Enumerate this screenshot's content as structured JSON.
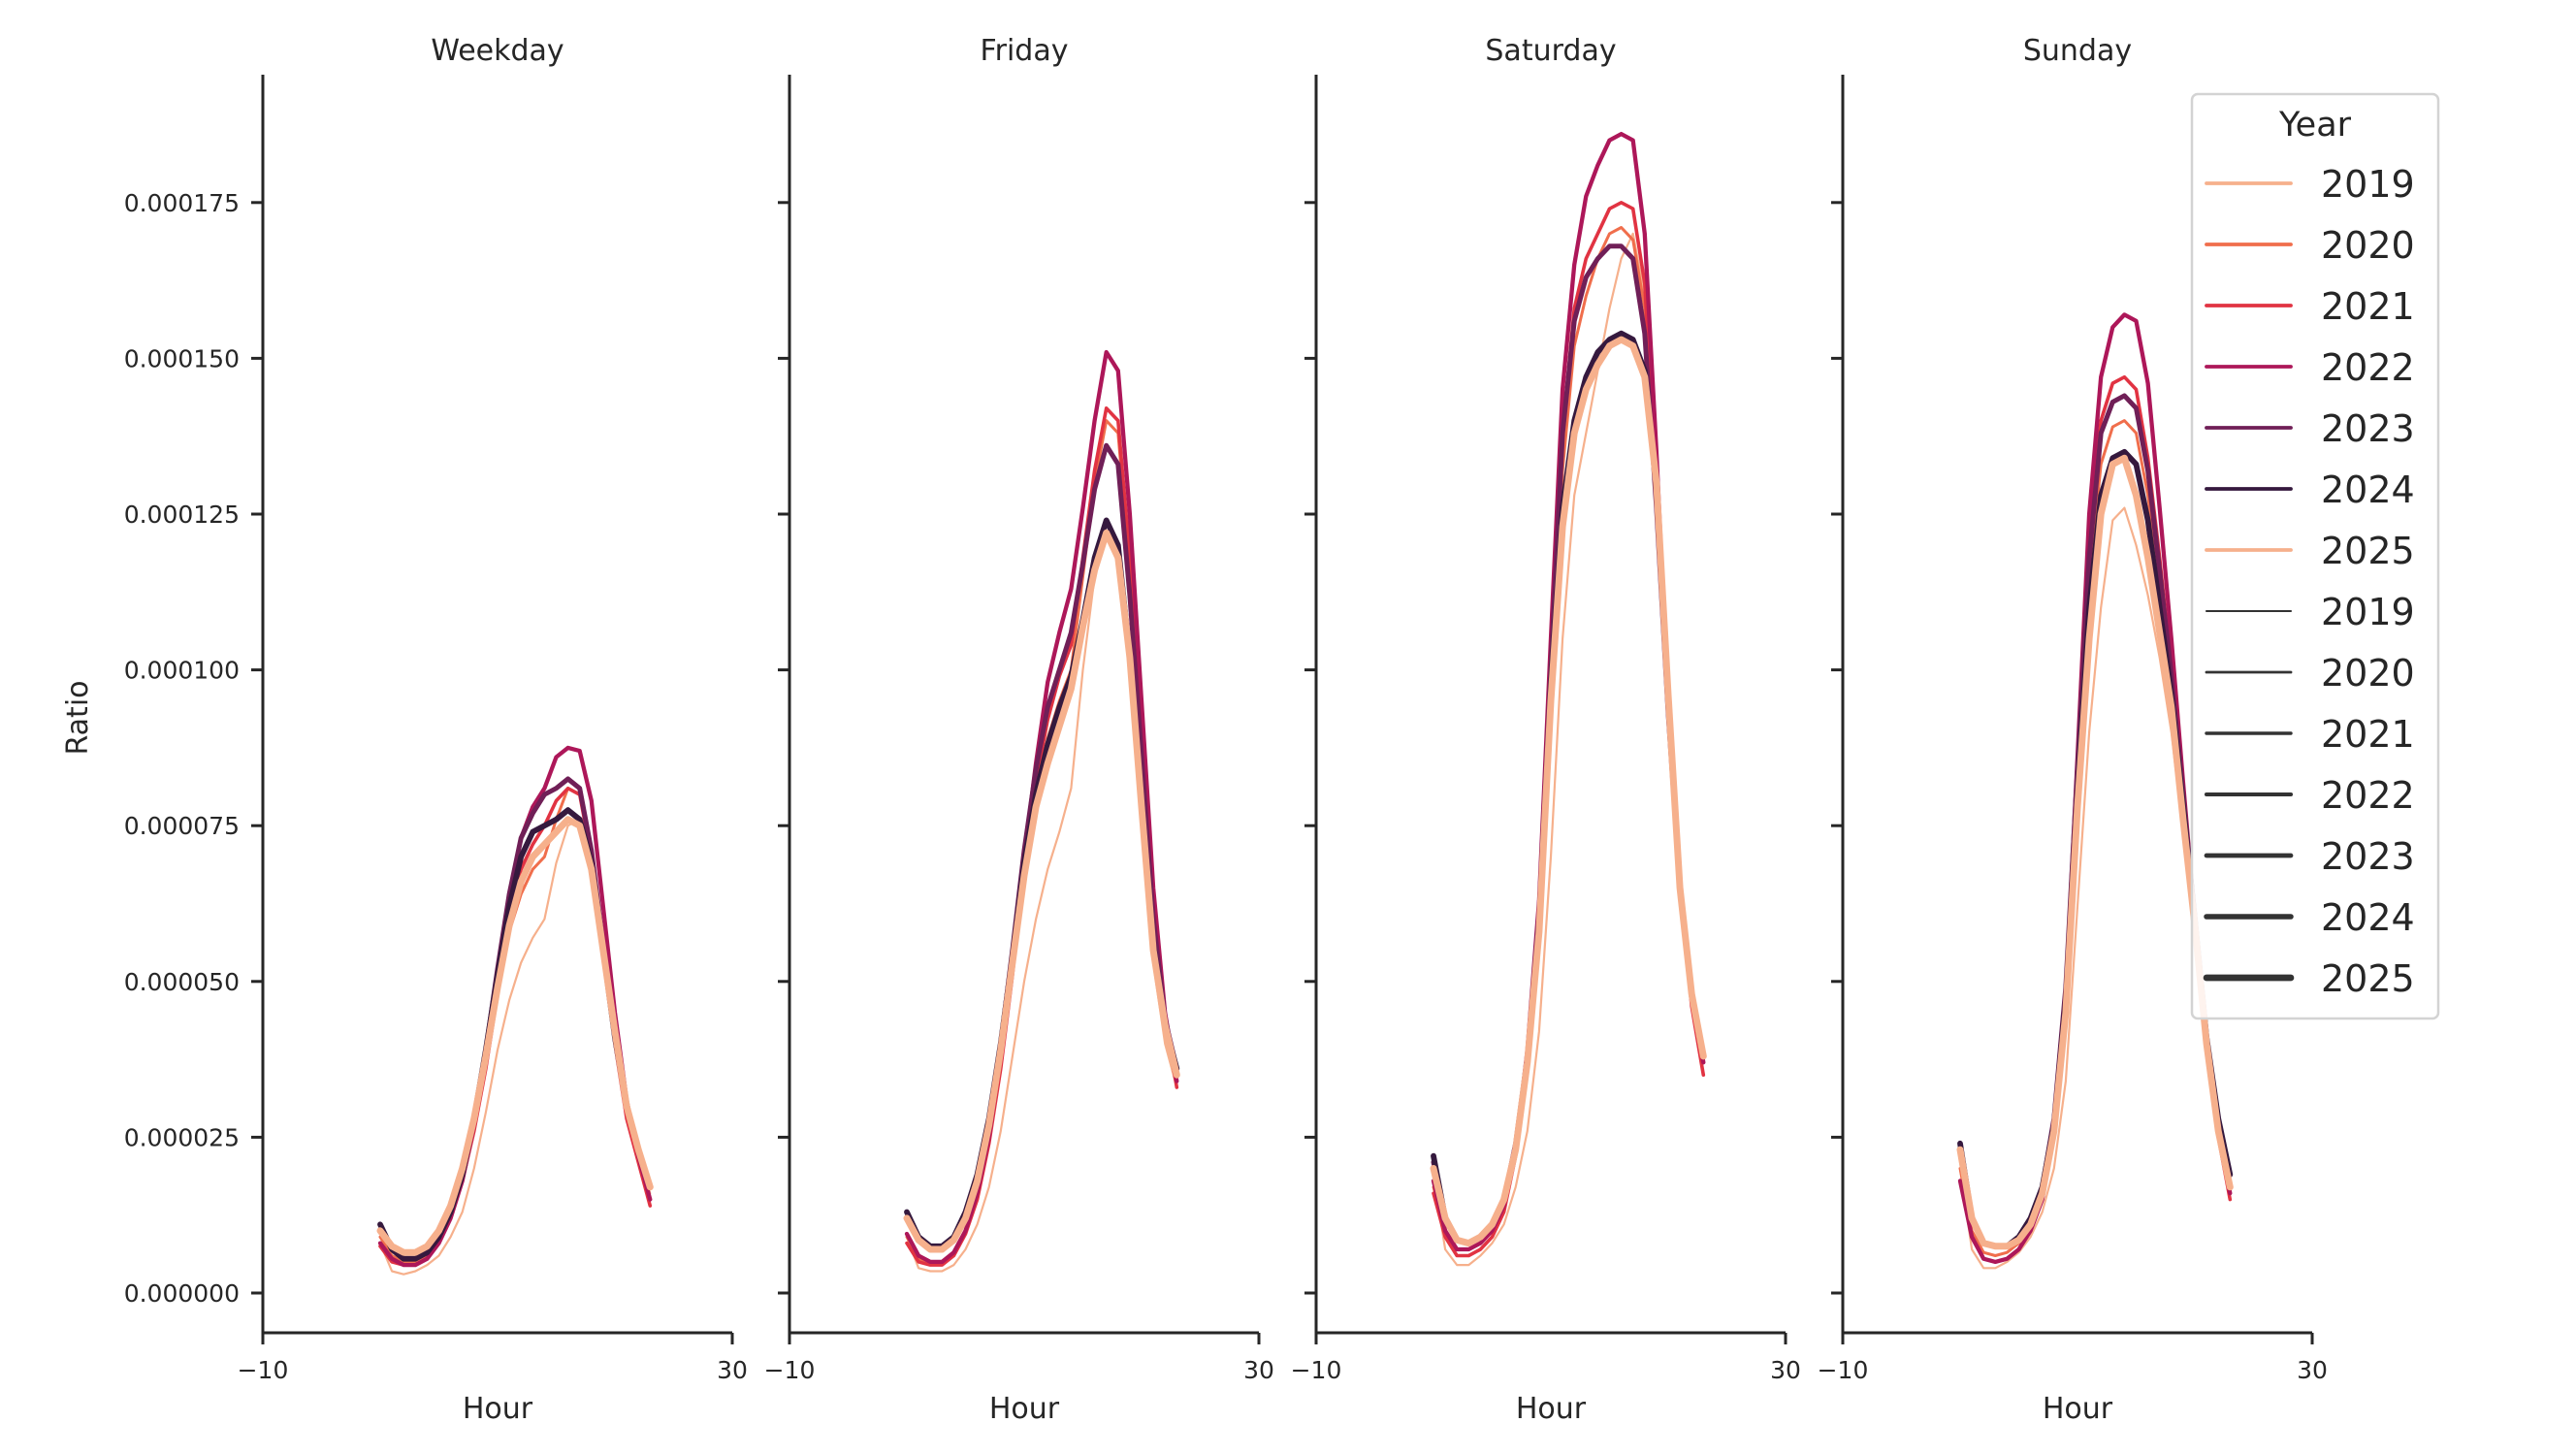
{
  "chart_data": {
    "type": "line",
    "ylabel": "Ratio",
    "xlabel": "Hour",
    "xlim": [
      -10,
      30
    ],
    "xticks": [
      "−10",
      "30"
    ],
    "ylim": [
      -6.5e-06,
      0.000197
    ],
    "yticks": [
      "0.000000",
      "0.000025",
      "0.000050",
      "0.000075",
      "0.000100",
      "0.000125",
      "0.000150",
      "0.000175"
    ],
    "ytick_values": [
      0,
      2.5e-05,
      5e-05,
      7.5e-05,
      0.0001,
      0.000125,
      0.00015,
      0.000175
    ],
    "grid": false,
    "x": [
      0,
      1,
      2,
      3,
      4,
      5,
      6,
      7,
      8,
      9,
      10,
      11,
      12,
      13,
      14,
      15,
      16,
      17,
      18,
      19,
      20,
      21,
      22,
      23
    ],
    "legend": {
      "title": "Year",
      "placement": "right",
      "hue_entries": [
        "2019",
        "2020",
        "2021",
        "2022",
        "2023",
        "2024",
        "2025"
      ],
      "size_entries": [
        "2019",
        "2020",
        "2021",
        "2022",
        "2023",
        "2024",
        "2025"
      ]
    },
    "colors": {
      "2019": "#f6b08c",
      "2020": "#f06e4c",
      "2021": "#e13342",
      "2022": "#ad1759",
      "2023": "#701f57",
      "2024": "#35193e",
      "2025": "#f6b08c"
    },
    "panels": [
      {
        "title": "Weekday",
        "series": [
          {
            "name": "2019",
            "values": [
              8e-06,
              3.5e-06,
              3e-06,
              3.5e-06,
              4.5e-06,
              6e-06,
              9e-06,
              1.3e-05,
              2e-05,
              2.9e-05,
              3.9e-05,
              4.7e-05,
              5.3e-05,
              5.7e-05,
              6e-05,
              6.9e-05,
              7.5e-05,
              7.6e-05,
              6.7e-05,
              5.3e-05,
              4e-05,
              2.9e-05,
              2.2e-05,
              1.6e-05
            ]
          },
          {
            "name": "2020",
            "values": [
              9e-06,
              6e-06,
              5e-06,
              5e-06,
              6e-06,
              8.5e-06,
              1.2e-05,
              1.8e-05,
              2.6e-05,
              3.6e-05,
              4.8e-05,
              5.8e-05,
              6.4e-05,
              6.8e-05,
              7e-05,
              7.6e-05,
              8.1e-05,
              8e-05,
              7e-05,
              5.5e-05,
              4.1e-05,
              3e-05,
              2.3e-05,
              1.7e-05
            ]
          },
          {
            "name": "2021",
            "values": [
              7.5e-06,
              5e-06,
              4.5e-06,
              4.5e-06,
              5.5e-06,
              8e-06,
              1.2e-05,
              1.8e-05,
              2.6e-05,
              3.6e-05,
              4.8e-05,
              6e-05,
              6.8e-05,
              7.2e-05,
              7.5e-05,
              7.9e-05,
              8.1e-05,
              8e-05,
              7e-05,
              5.5e-05,
              4e-05,
              2.8e-05,
              2.1e-05,
              1.4e-05
            ]
          },
          {
            "name": "2022",
            "values": [
              8e-06,
              5.5e-06,
              4.5e-06,
              4.5e-06,
              5.5e-06,
              8e-06,
              1.2e-05,
              1.8e-05,
              2.7e-05,
              3.8e-05,
              5.1e-05,
              6.3e-05,
              7.3e-05,
              7.8e-05,
              8.1e-05,
              8.6e-05,
              8.75e-05,
              8.7e-05,
              7.9e-05,
              6.2e-05,
              4.5e-05,
              3.1e-05,
              2.2e-05,
              1.5e-05
            ]
          },
          {
            "name": "2023",
            "values": [
              1.1e-05,
              7e-06,
              5.5e-06,
              5.5e-06,
              6.5e-06,
              9e-06,
              1.3e-05,
              1.9e-05,
              2.8e-05,
              3.9e-05,
              5.2e-05,
              6.4e-05,
              7.3e-05,
              7.7e-05,
              8e-05,
              8.1e-05,
              8.25e-05,
              8.1e-05,
              7.1e-05,
              5.6e-05,
              4.2e-05,
              3e-05,
              2.3e-05,
              1.7e-05
            ]
          },
          {
            "name": "2024",
            "values": [
              1.1e-05,
              7e-06,
              5.5e-06,
              5.5e-06,
              6.5e-06,
              9e-06,
              1.3e-05,
              1.9e-05,
              2.8e-05,
              3.9e-05,
              5.1e-05,
              6.2e-05,
              7e-05,
              7.4e-05,
              7.5e-05,
              7.6e-05,
              7.75e-05,
              7.6e-05,
              6.9e-05,
              5.5e-05,
              4.1e-05,
              3e-05,
              2.3e-05,
              1.7e-05
            ]
          },
          {
            "name": "2025",
            "values": [
              1e-05,
              7.5e-06,
              6.5e-06,
              6.5e-06,
              7.5e-06,
              1e-05,
              1.4e-05,
              2e-05,
              2.8e-05,
              3.8e-05,
              4.9e-05,
              5.9e-05,
              6.6e-05,
              7e-05,
              7.2e-05,
              7.4e-05,
              7.6e-05,
              7.5e-05,
              6.8e-05,
              5.5e-05,
              4.2e-05,
              3e-05,
              2.3e-05,
              1.7e-05
            ]
          }
        ]
      },
      {
        "title": "Friday",
        "series": [
          {
            "name": "2019",
            "values": [
              9e-06,
              4e-06,
              3.5e-06,
              3.5e-06,
              4.5e-06,
              7e-06,
              1.1e-05,
              1.7e-05,
              2.6e-05,
              3.8e-05,
              5e-05,
              6e-05,
              6.8e-05,
              7.4e-05,
              8.1e-05,
              0.0001,
              0.000115,
              0.000121,
              0.000118,
              0.0001,
              7.6e-05,
              5.3e-05,
              4e-05,
              3.3e-05
            ]
          },
          {
            "name": "2020",
            "values": [
              9e-06,
              5.5e-06,
              5e-06,
              5e-06,
              6.5e-06,
              1e-05,
              1.6e-05,
              2.5e-05,
              3.7e-05,
              5.1e-05,
              6.7e-05,
              8e-05,
              8.9e-05,
              9.5e-05,
              0.0001,
              0.000115,
              0.00013,
              0.00014,
              0.000138,
              0.000116,
              8.9e-05,
              6.2e-05,
              4.4e-05,
              3.4e-05
            ]
          },
          {
            "name": "2021",
            "values": [
              8e-06,
              5e-06,
              4.5e-06,
              4.5e-06,
              6e-06,
              9.5e-06,
              1.5e-05,
              2.4e-05,
              3.6e-05,
              5.1e-05,
              6.8e-05,
              8.2e-05,
              9.2e-05,
              9.9e-05,
              0.000104,
              0.000118,
              0.000132,
              0.000142,
              0.00014,
              0.000118,
              9e-05,
              6.2e-05,
              4.4e-05,
              3.3e-05
            ]
          },
          {
            "name": "2022",
            "values": [
              9.5e-06,
              6e-06,
              5e-06,
              5e-06,
              6.5e-06,
              1e-05,
              1.6e-05,
              2.5e-05,
              3.8e-05,
              5.3e-05,
              7e-05,
              8.5e-05,
              9.8e-05,
              0.000106,
              0.000113,
              0.000126,
              0.00014,
              0.000151,
              0.000148,
              0.000125,
              9.5e-05,
              6.5e-05,
              4.5e-05,
              3.4e-05
            ]
          },
          {
            "name": "2023",
            "values": [
              1.3e-05,
              9e-06,
              7.5e-06,
              7.5e-06,
              9e-06,
              1.3e-05,
              1.9e-05,
              2.8e-05,
              4e-05,
              5.5e-05,
              7.1e-05,
              8.4e-05,
              9.4e-05,
              0.0001,
              0.000106,
              0.000117,
              0.000129,
              0.000136,
              0.000133,
              0.000112,
              8.6e-05,
              6e-05,
              4.4e-05,
              3.6e-05
            ]
          },
          {
            "name": "2024",
            "values": [
              1.3e-05,
              9e-06,
              7.5e-06,
              7.5e-06,
              9e-06,
              1.3e-05,
              1.9e-05,
              2.8e-05,
              4e-05,
              5.4e-05,
              6.9e-05,
              8e-05,
              8.8e-05,
              9.4e-05,
              9.9e-05,
              0.000108,
              0.000118,
              0.000124,
              0.00012,
              0.000102,
              7.9e-05,
              5.6e-05,
              4.3e-05,
              3.6e-05
            ]
          },
          {
            "name": "2025",
            "values": [
              1.2e-05,
              8.5e-06,
              7e-06,
              7e-06,
              8.5e-06,
              1.2e-05,
              1.8e-05,
              2.7e-05,
              3.9e-05,
              5.3e-05,
              6.7e-05,
              7.8e-05,
              8.5e-05,
              9.1e-05,
              9.7e-05,
              0.000107,
              0.000116,
              0.000122,
              0.000118,
              0.000102,
              7.8e-05,
              5.5e-05,
              4.3e-05,
              3.5e-05
            ]
          }
        ]
      },
      {
        "title": "Saturday",
        "series": [
          {
            "name": "2019",
            "values": [
              1.9e-05,
              7e-06,
              4.5e-06,
              4.5e-06,
              6e-06,
              8e-06,
              1.1e-05,
              1.7e-05,
              2.6e-05,
              4.2e-05,
              7e-05,
              0.000105,
              0.000128,
              0.000138,
              0.000148,
              0.000158,
              0.000166,
              0.00017,
              0.00016,
              0.00013,
              9.5e-05,
              6.5e-05,
              4.8e-05,
              3.8e-05
            ]
          },
          {
            "name": "2020",
            "values": [
              1.7e-05,
              1e-05,
              7e-06,
              7e-06,
              8e-06,
              1e-05,
              1.4e-05,
              2.2e-05,
              3.6e-05,
              5.8e-05,
              9.6e-05,
              0.000132,
              0.000152,
              0.00016,
              0.000166,
              0.00017,
              0.000171,
              0.000169,
              0.000158,
              0.000126,
              9.2e-05,
              6.4e-05,
              4.7e-05,
              3.7e-05
            ]
          },
          {
            "name": "2021",
            "values": [
              1.6e-05,
              9e-06,
              6e-06,
              6e-06,
              7e-06,
              9e-06,
              1.3e-05,
              2.2e-05,
              3.7e-05,
              6e-05,
              0.0001,
              0.000138,
              0.000158,
              0.000166,
              0.00017,
              0.000174,
              0.000175,
              0.000174,
              0.000162,
              0.000128,
              9.2e-05,
              6.4e-05,
              4.6e-05,
              3.5e-05
            ]
          },
          {
            "name": "2022",
            "values": [
              1.8e-05,
              1e-05,
              7e-06,
              7e-06,
              8e-06,
              1e-05,
              1.4e-05,
              2.3e-05,
              3.9e-05,
              6.3e-05,
              0.000105,
              0.000145,
              0.000165,
              0.000176,
              0.000181,
              0.000185,
              0.000186,
              0.000185,
              0.00017,
              0.000135,
              9.5e-05,
              6.6e-05,
              4.8e-05,
              3.7e-05
            ]
          },
          {
            "name": "2023",
            "values": [
              2.1e-05,
              1.2e-05,
              8.5e-06,
              8e-06,
              9e-06,
              1.1e-05,
              1.5e-05,
              2.4e-05,
              3.8e-05,
              6.1e-05,
              0.0001,
              0.000138,
              0.000156,
              0.000163,
              0.000166,
              0.000168,
              0.000168,
              0.000166,
              0.000154,
              0.000126,
              9.3e-05,
              6.5e-05,
              4.8e-05,
              3.8e-05
            ]
          },
          {
            "name": "2024",
            "values": [
              2.2e-05,
              1.2e-05,
              8.5e-06,
              8e-06,
              9e-06,
              1.1e-05,
              1.5e-05,
              2.3e-05,
              3.7e-05,
              5.9e-05,
              9.7e-05,
              0.000126,
              0.00014,
              0.000147,
              0.000151,
              0.000153,
              0.000154,
              0.000153,
              0.000148,
              0.00013,
              9.6e-05,
              6.5e-05,
              4.8e-05,
              3.8e-05
            ]
          },
          {
            "name": "2025",
            "values": [
              2e-05,
              1.2e-05,
              8.5e-06,
              8e-06,
              9e-06,
              1.1e-05,
              1.5e-05,
              2.3e-05,
              3.7e-05,
              5.8e-05,
              9.5e-05,
              0.000123,
              0.000138,
              0.000145,
              0.000149,
              0.000152,
              0.000153,
              0.000152,
              0.000147,
              0.00013,
              9.6e-05,
              6.5e-05,
              4.8e-05,
              3.8e-05
            ]
          }
        ]
      },
      {
        "title": "Sunday",
        "series": [
          {
            "name": "2019",
            "values": [
              2e-05,
              7e-06,
              4e-06,
              4e-06,
              5e-06,
              6.5e-06,
              9e-06,
              1.3e-05,
              2e-05,
              3.4e-05,
              6.2e-05,
              9e-05,
              0.00011,
              0.000124,
              0.000126,
              0.00012,
              0.000112,
              0.000102,
              9e-05,
              7.4e-05,
              5.7e-05,
              3.9e-05,
              2.5e-05,
              1.6e-05
            ]
          },
          {
            "name": "2020",
            "values": [
              2e-05,
              1e-05,
              6.5e-06,
              6e-06,
              6.5e-06,
              8e-06,
              1.1e-05,
              1.6e-05,
              2.6e-05,
              4.6e-05,
              8e-05,
              0.000114,
              0.000133,
              0.000139,
              0.00014,
              0.000138,
              0.000128,
              0.000113,
              9.7e-05,
              7.8e-05,
              5.9e-05,
              4e-05,
              2.6e-05,
              1.7e-05
            ]
          },
          {
            "name": "2021",
            "values": [
              1.8e-05,
              9e-06,
              5.5e-06,
              5e-06,
              5.5e-06,
              7e-06,
              1e-05,
              1.5e-05,
              2.6e-05,
              4.7e-05,
              8.3e-05,
              0.00012,
              0.00014,
              0.000146,
              0.000147,
              0.000145,
              0.000134,
              0.000118,
              0.0001,
              8e-05,
              5.9e-05,
              3.9e-05,
              2.5e-05,
              1.5e-05
            ]
          },
          {
            "name": "2022",
            "values": [
              1.8e-05,
              9e-06,
              5.5e-06,
              5e-06,
              5.5e-06,
              7e-06,
              1e-05,
              1.5e-05,
              2.6e-05,
              4.8e-05,
              8.6e-05,
              0.000125,
              0.000147,
              0.000155,
              0.000157,
              0.000156,
              0.000146,
              0.000126,
              0.000105,
              8.2e-05,
              6e-05,
              4e-05,
              2.6e-05,
              1.6e-05
            ]
          },
          {
            "name": "2023",
            "values": [
              2.3e-05,
              1.2e-05,
              8e-06,
              7.5e-06,
              7.5e-06,
              9e-06,
              1.2e-05,
              1.7e-05,
              2.8e-05,
              4.9e-05,
              8.4e-05,
              0.000118,
              0.000138,
              0.000143,
              0.000144,
              0.000142,
              0.000132,
              0.000116,
              9.9e-05,
              8e-05,
              6e-05,
              4.1e-05,
              2.8e-05,
              1.9e-05
            ]
          },
          {
            "name": "2024",
            "values": [
              2.4e-05,
              1.2e-05,
              8e-06,
              7.5e-06,
              7.5e-06,
              9e-06,
              1.2e-05,
              1.7e-05,
              2.7e-05,
              4.7e-05,
              8e-05,
              0.00011,
              0.000128,
              0.000134,
              0.000135,
              0.000133,
              0.000124,
              0.00011,
              9.6e-05,
              7.8e-05,
              6e-05,
              4.1e-05,
              2.8e-05,
              1.9e-05
            ]
          },
          {
            "name": "2025",
            "values": [
              2.3e-05,
              1.2e-05,
              8e-06,
              7.5e-06,
              7.5e-06,
              8.5e-06,
              1.1e-05,
              1.6e-05,
              2.6e-05,
              4.5e-05,
              7.8e-05,
              0.000105,
              0.000125,
              0.000133,
              0.000134,
              0.000128,
              0.000118,
              0.000106,
              9.4e-05,
              7.6e-05,
              5.9e-05,
              4e-05,
              2.6e-05,
              1.7e-05
            ]
          }
        ]
      }
    ]
  }
}
